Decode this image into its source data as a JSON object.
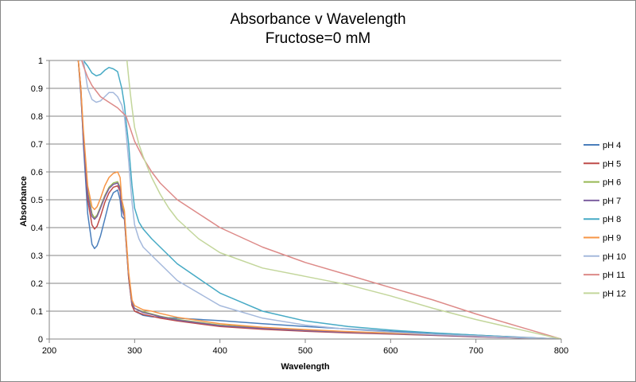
{
  "chart_data": {
    "type": "line",
    "title": "Absorbance v Wavelength",
    "subtitle": "Fructose=0 mM",
    "xlabel": "Wavelength",
    "ylabel": "Absorbance",
    "xlim": [
      200,
      800
    ],
    "ylim": [
      0,
      1
    ],
    "xticks": [
      "200",
      "300",
      "400",
      "500",
      "600",
      "700",
      "800"
    ],
    "yticks": [
      "0",
      "0.1",
      "0.2",
      "0.3",
      "0.4",
      "0.5",
      "0.6",
      "0.7",
      "0.8",
      "0.9",
      "1"
    ],
    "grid": "horizontal",
    "legend": "right",
    "series": [
      {
        "name": "pH 4",
        "color": "#4A7EBB",
        "x": [
          234,
          237,
          240,
          245,
          250,
          253,
          256,
          260,
          265,
          270,
          275,
          280,
          283,
          285,
          288,
          290,
          293,
          297,
          300,
          310,
          320,
          330,
          350,
          400,
          450,
          500,
          550,
          600,
          650,
          700,
          750,
          800
        ],
        "y": [
          1.0,
          0.9,
          0.7,
          0.45,
          0.34,
          0.325,
          0.335,
          0.37,
          0.43,
          0.49,
          0.525,
          0.535,
          0.5,
          0.44,
          0.43,
          0.35,
          0.22,
          0.12,
          0.1,
          0.085,
          0.08,
          0.078,
          0.075,
          0.066,
          0.055,
          0.045,
          0.036,
          0.028,
          0.021,
          0.014,
          0.007,
          0.0
        ]
      },
      {
        "name": "pH 5",
        "color": "#BE4B48",
        "x": [
          234,
          237,
          240,
          245,
          250,
          253,
          256,
          260,
          265,
          270,
          275,
          280,
          283,
          285,
          288,
          290,
          293,
          297,
          300,
          310,
          320,
          330,
          350,
          400,
          450,
          500,
          550,
          600,
          650,
          700,
          750,
          800
        ],
        "y": [
          1.0,
          0.9,
          0.72,
          0.5,
          0.41,
          0.395,
          0.405,
          0.44,
          0.49,
          0.525,
          0.545,
          0.55,
          0.53,
          0.47,
          0.44,
          0.35,
          0.22,
          0.12,
          0.1,
          0.088,
          0.082,
          0.075,
          0.065,
          0.045,
          0.035,
          0.028,
          0.022,
          0.018,
          0.013,
          0.008,
          0.004,
          0.0
        ]
      },
      {
        "name": "pH 6",
        "color": "#98B954",
        "x": [
          234,
          237,
          240,
          245,
          250,
          253,
          256,
          260,
          265,
          270,
          275,
          280,
          283,
          285,
          288,
          290,
          293,
          297,
          300,
          310,
          320,
          330,
          350,
          400,
          450,
          500,
          550,
          600,
          650,
          700,
          750,
          800
        ],
        "y": [
          1.0,
          0.88,
          0.73,
          0.53,
          0.45,
          0.435,
          0.445,
          0.475,
          0.515,
          0.545,
          0.56,
          0.565,
          0.545,
          0.48,
          0.45,
          0.36,
          0.23,
          0.13,
          0.11,
          0.098,
          0.09,
          0.082,
          0.07,
          0.05,
          0.04,
          0.032,
          0.026,
          0.02,
          0.015,
          0.01,
          0.005,
          0.0
        ]
      },
      {
        "name": "pH 7",
        "color": "#7D60A0",
        "x": [
          234,
          237,
          240,
          245,
          250,
          253,
          256,
          260,
          265,
          270,
          275,
          280,
          283,
          285,
          288,
          290,
          293,
          297,
          300,
          310,
          320,
          330,
          350,
          400,
          450,
          500,
          550,
          600,
          650,
          700,
          750,
          800
        ],
        "y": [
          1.0,
          0.88,
          0.72,
          0.52,
          0.44,
          0.43,
          0.44,
          0.47,
          0.51,
          0.54,
          0.555,
          0.56,
          0.54,
          0.47,
          0.44,
          0.36,
          0.23,
          0.13,
          0.11,
          0.095,
          0.088,
          0.08,
          0.068,
          0.048,
          0.038,
          0.03,
          0.024,
          0.019,
          0.014,
          0.009,
          0.004,
          0.0
        ]
      },
      {
        "name": "pH 8",
        "color": "#46AAC5",
        "x": [
          240,
          245,
          250,
          255,
          260,
          265,
          270,
          275,
          280,
          285,
          288,
          290,
          293,
          295,
          297,
          300,
          305,
          310,
          320,
          330,
          350,
          400,
          450,
          500,
          550,
          600,
          650,
          700,
          750,
          800
        ],
        "y": [
          1.0,
          0.98,
          0.955,
          0.945,
          0.95,
          0.965,
          0.975,
          0.97,
          0.96,
          0.9,
          0.84,
          0.78,
          0.7,
          0.62,
          0.55,
          0.47,
          0.42,
          0.395,
          0.36,
          0.33,
          0.27,
          0.165,
          0.1,
          0.065,
          0.045,
          0.032,
          0.022,
          0.014,
          0.006,
          0.0
        ]
      },
      {
        "name": "pH 9",
        "color": "#F79646",
        "x": [
          234,
          237,
          240,
          245,
          250,
          253,
          256,
          260,
          265,
          270,
          275,
          280,
          283,
          285,
          288,
          290,
          293,
          297,
          300,
          310,
          320,
          330,
          350,
          400,
          450,
          500,
          550,
          600,
          650,
          700,
          750,
          800
        ],
        "y": [
          1.0,
          0.9,
          0.75,
          0.55,
          0.475,
          0.465,
          0.475,
          0.505,
          0.55,
          0.58,
          0.595,
          0.6,
          0.58,
          0.5,
          0.46,
          0.37,
          0.24,
          0.14,
          0.12,
          0.105,
          0.1,
          0.092,
          0.078,
          0.055,
          0.042,
          0.034,
          0.027,
          0.021,
          0.016,
          0.011,
          0.005,
          0.0
        ]
      },
      {
        "name": "pH 10",
        "color": "#A5B9DC",
        "x": [
          240,
          245,
          250,
          255,
          260,
          265,
          270,
          275,
          280,
          285,
          288,
          290,
          293,
          295,
          297,
          300,
          305,
          310,
          320,
          330,
          350,
          400,
          450,
          500,
          550,
          600,
          650,
          700,
          750,
          800
        ],
        "y": [
          1.0,
          0.9,
          0.86,
          0.85,
          0.855,
          0.87,
          0.885,
          0.885,
          0.87,
          0.84,
          0.8,
          0.74,
          0.64,
          0.56,
          0.49,
          0.41,
          0.36,
          0.33,
          0.3,
          0.27,
          0.21,
          0.12,
          0.075,
          0.05,
          0.035,
          0.025,
          0.017,
          0.011,
          0.005,
          0.0
        ]
      },
      {
        "name": "pH 11",
        "color": "#DD8A88",
        "x": [
          238,
          240,
          245,
          250,
          260,
          270,
          280,
          290,
          300,
          310,
          320,
          330,
          350,
          400,
          450,
          500,
          550,
          600,
          650,
          700,
          750,
          800
        ],
        "y": [
          1.0,
          0.98,
          0.94,
          0.91,
          0.87,
          0.85,
          0.83,
          0.8,
          0.71,
          0.65,
          0.6,
          0.56,
          0.5,
          0.4,
          0.33,
          0.275,
          0.23,
          0.185,
          0.14,
          0.09,
          0.045,
          0.0
        ]
      },
      {
        "name": "pH 12",
        "color": "#C3D69B",
        "x": [
          291,
          293,
          295,
          297,
          300,
          305,
          310,
          320,
          330,
          340,
          350,
          375,
          400,
          450,
          500,
          550,
          600,
          650,
          700,
          750,
          800
        ],
        "y": [
          1.0,
          0.94,
          0.88,
          0.83,
          0.76,
          0.7,
          0.655,
          0.58,
          0.52,
          0.47,
          0.43,
          0.36,
          0.31,
          0.255,
          0.225,
          0.195,
          0.155,
          0.11,
          0.07,
          0.035,
          0.0
        ]
      }
    ]
  }
}
